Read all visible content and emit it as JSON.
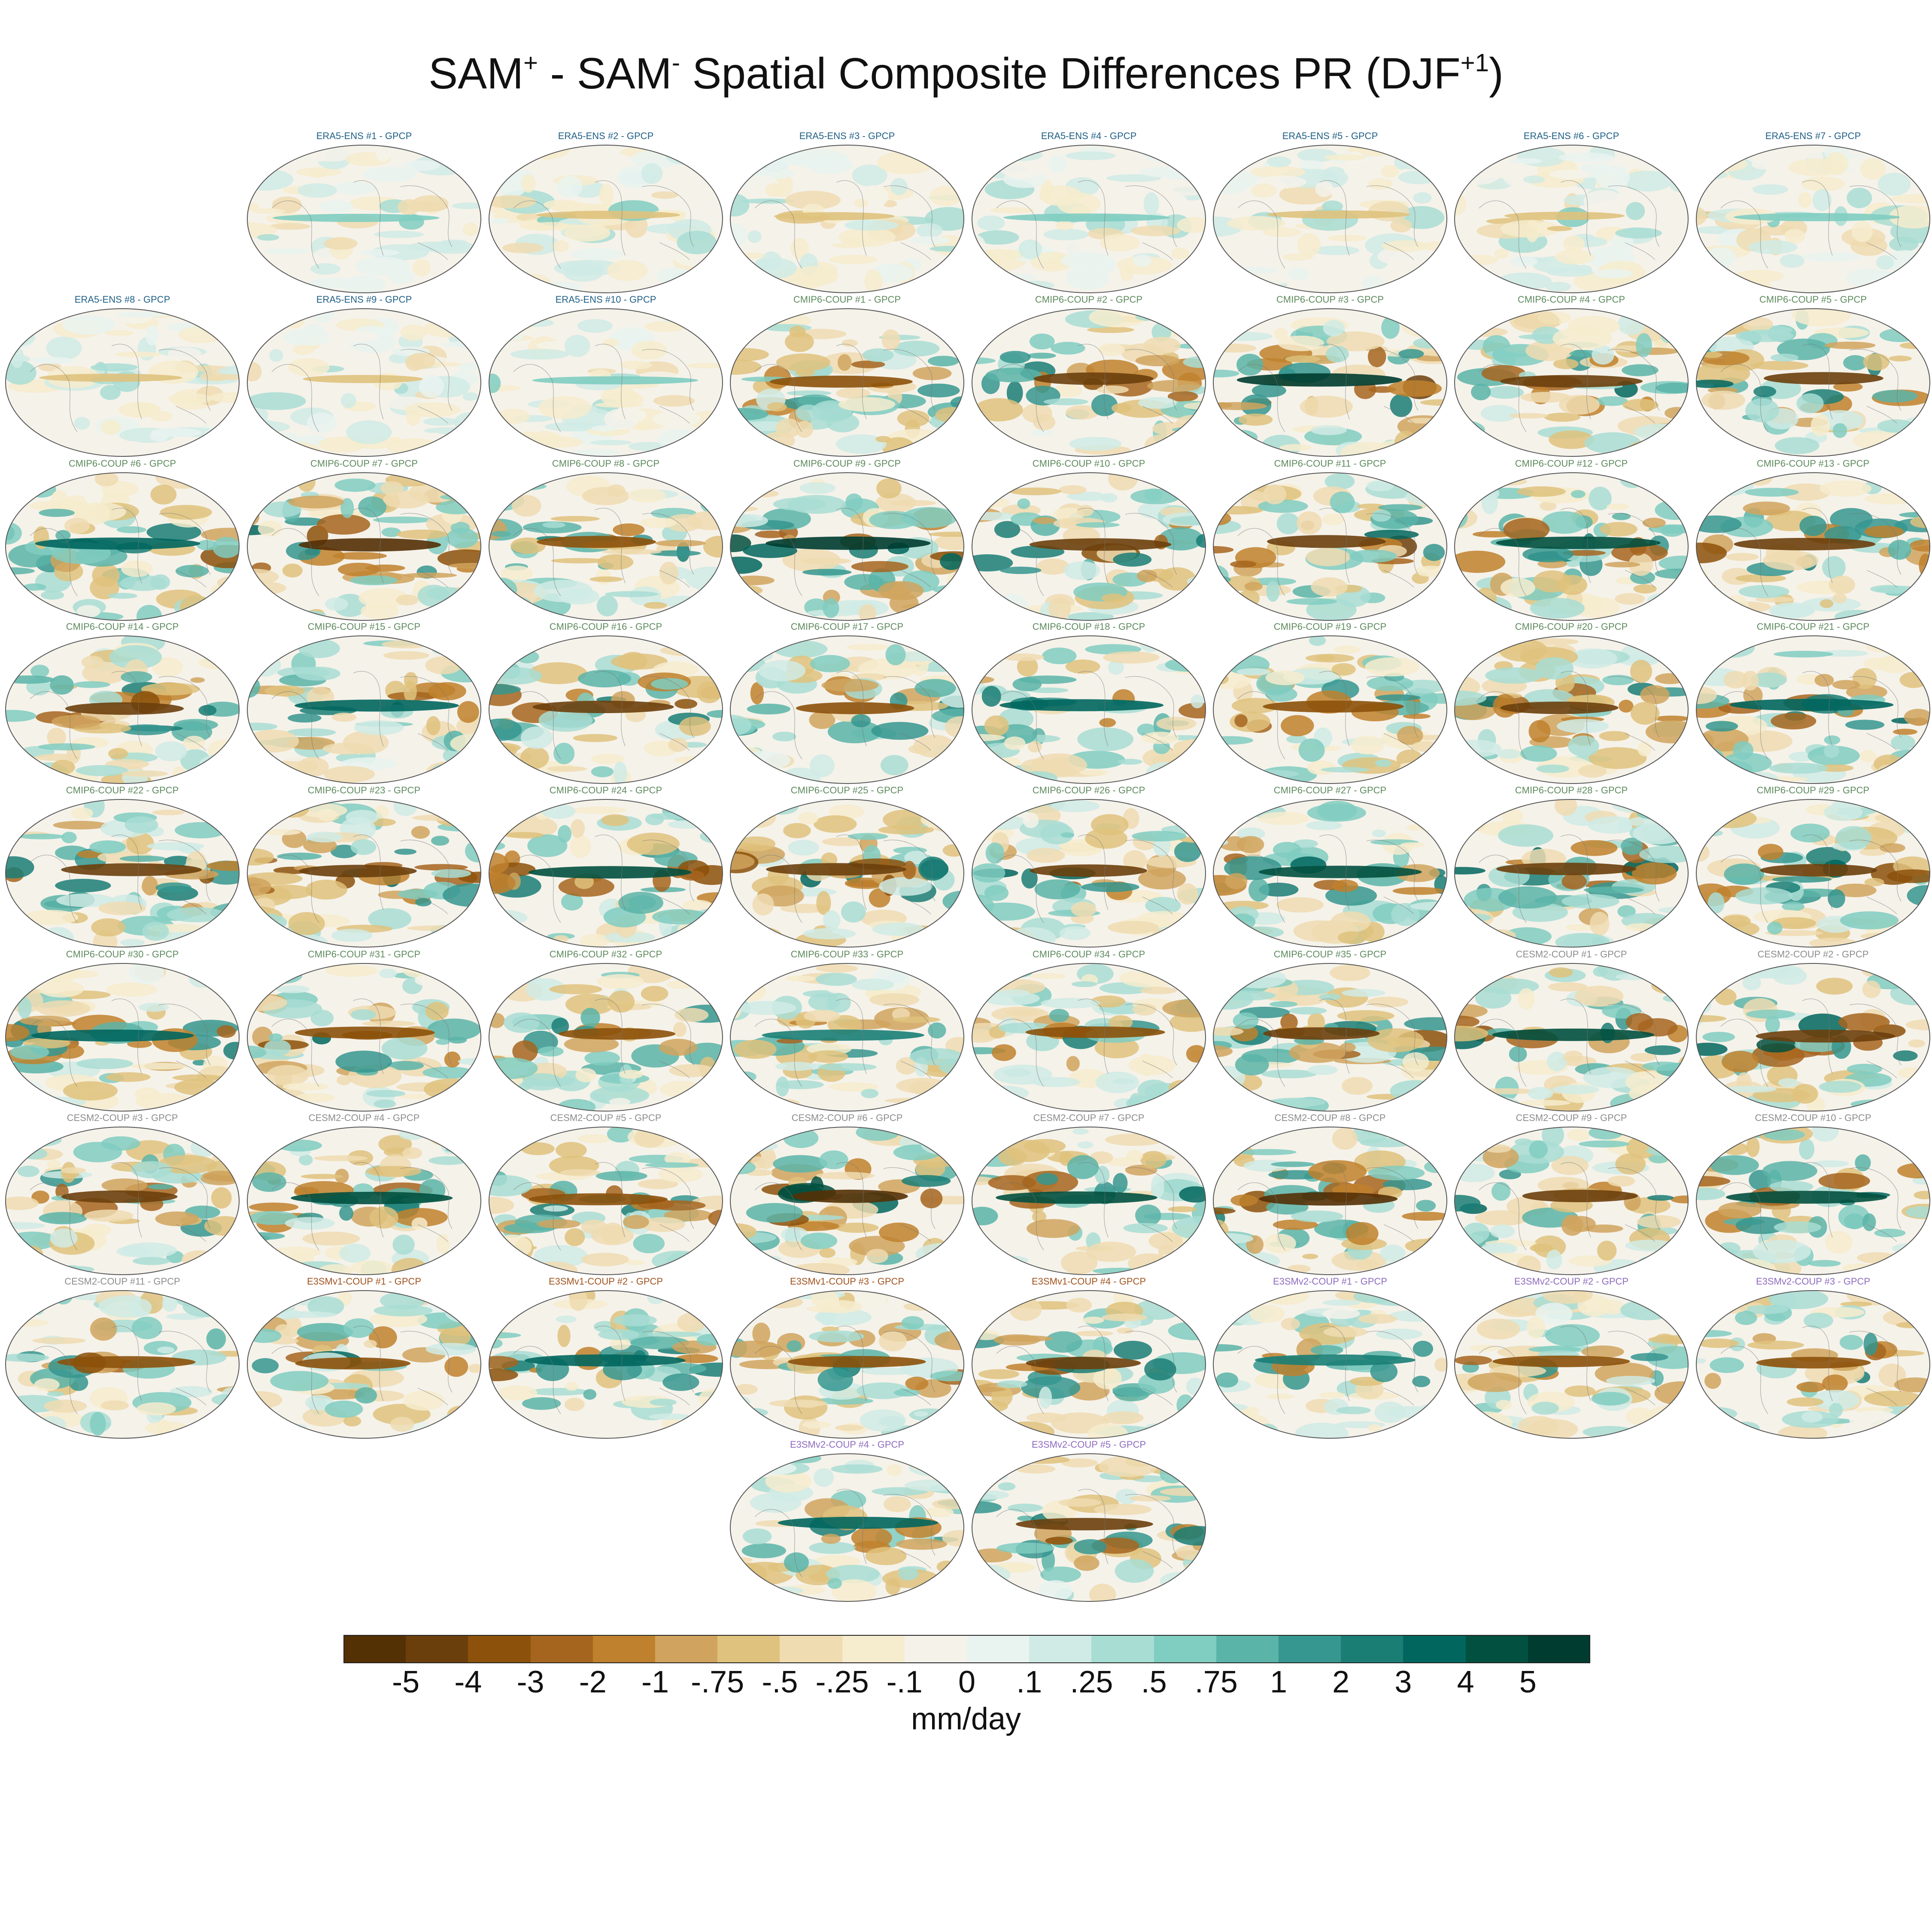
{
  "title": {
    "part1": "SAM",
    "sup1": "+",
    "part2": " - SAM",
    "sup2": "-",
    "part3": " Spatial Composite Differences PR (DJF",
    "sup3": "+1",
    "part4": ")"
  },
  "chart_data": {
    "type": "heatmap",
    "description_of_panels_shown": "map panels",
    "panel_suffix": " - GPCP",
    "groups": [
      {
        "name": "ERA5-ENS",
        "count": 10,
        "color": "#1f5f86"
      },
      {
        "name": "CMIP6-COUP",
        "count": 35,
        "color": "#5d8a5d"
      },
      {
        "name": "CESM2-COUP",
        "count": 11,
        "color": "#8c8c8c"
      },
      {
        "name": "E3SMv1-COUP",
        "count": 4,
        "color": "#a0521d"
      },
      {
        "name": "E3SMv2-COUP",
        "count": 5,
        "color": "#8e6bbf"
      }
    ],
    "panels": [
      {
        "label": "ERA5-ENS    #1 - GPCP",
        "group": 0,
        "intensity": 0.35
      },
      {
        "label": "ERA5-ENS    #2 - GPCP",
        "group": 0,
        "intensity": 0.35
      },
      {
        "label": "ERA5-ENS    #3 - GPCP",
        "group": 0,
        "intensity": 0.35
      },
      {
        "label": "ERA5-ENS    #4 - GPCP",
        "group": 0,
        "intensity": 0.35
      },
      {
        "label": "ERA5-ENS    #5 - GPCP",
        "group": 0,
        "intensity": 0.35
      },
      {
        "label": "ERA5-ENS    #6 - GPCP",
        "group": 0,
        "intensity": 0.35
      },
      {
        "label": "ERA5-ENS    #7 - GPCP",
        "group": 0,
        "intensity": 0.35
      },
      {
        "label": "ERA5-ENS    #8 - GPCP",
        "group": 0,
        "intensity": 0.35
      },
      {
        "label": "ERA5-ENS    #9 - GPCP",
        "group": 0,
        "intensity": 0.35
      },
      {
        "label": "ERA5-ENS    #10 - GPCP",
        "group": 0,
        "intensity": 0.35
      },
      {
        "label": "CMIP6-COUP  #1 - GPCP",
        "group": 1,
        "intensity": 0.8
      },
      {
        "label": "CMIP6-COUP  #2 - GPCP",
        "group": 1,
        "intensity": 0.85
      },
      {
        "label": "CMIP6-COUP  #3 - GPCP",
        "group": 1,
        "intensity": 0.95
      },
      {
        "label": "CMIP6-COUP  #4 - GPCP",
        "group": 1,
        "intensity": 0.85
      },
      {
        "label": "CMIP6-COUP  #5 - GPCP",
        "group": 1,
        "intensity": 0.85
      },
      {
        "label": "CMIP6-COUP  #6 - GPCP",
        "group": 1,
        "intensity": 0.8
      },
      {
        "label": "CMIP6-COUP  #7 - GPCP",
        "group": 1,
        "intensity": 0.95
      },
      {
        "label": "CMIP6-COUP  #8 - GPCP",
        "group": 1,
        "intensity": 0.8
      },
      {
        "label": "CMIP6-COUP  #9 - GPCP",
        "group": 1,
        "intensity": 0.95
      },
      {
        "label": "CMIP6-COUP  #10 - GPCP",
        "group": 1,
        "intensity": 0.85
      },
      {
        "label": "CMIP6-COUP  #11 - GPCP",
        "group": 1,
        "intensity": 0.9
      },
      {
        "label": "CMIP6-COUP  #12 - GPCP",
        "group": 1,
        "intensity": 0.85
      },
      {
        "label": "CMIP6-COUP  #13 - GPCP",
        "group": 1,
        "intensity": 0.85
      },
      {
        "label": "CMIP6-COUP  #14 - GPCP",
        "group": 1,
        "intensity": 0.85
      },
      {
        "label": "CMIP6-COUP  #15 - GPCP",
        "group": 1,
        "intensity": 0.8
      },
      {
        "label": "CMIP6-COUP  #16 - GPCP",
        "group": 1,
        "intensity": 0.85
      },
      {
        "label": "CMIP6-COUP  #17 - GPCP",
        "group": 1,
        "intensity": 0.8
      },
      {
        "label": "CMIP6-COUP  #18 - GPCP",
        "group": 1,
        "intensity": 0.8
      },
      {
        "label": "CMIP6-COUP  #19 - GPCP",
        "group": 1,
        "intensity": 0.8
      },
      {
        "label": "CMIP6-COUP  #20 - GPCP",
        "group": 1,
        "intensity": 0.85
      },
      {
        "label": "CMIP6-COUP  #21 - GPCP",
        "group": 1,
        "intensity": 0.8
      },
      {
        "label": "CMIP6-COUP  #22 - GPCP",
        "group": 1,
        "intensity": 0.9
      },
      {
        "label": "CMIP6-COUP  #23 - GPCP",
        "group": 1,
        "intensity": 0.85
      },
      {
        "label": "CMIP6-COUP  #24 - GPCP",
        "group": 1,
        "intensity": 0.85
      },
      {
        "label": "CMIP6-COUP  #25 - GPCP",
        "group": 1,
        "intensity": 0.85
      },
      {
        "label": "CMIP6-COUP  #26 - GPCP",
        "group": 1,
        "intensity": 0.85
      },
      {
        "label": "CMIP6-COUP  #27 - GPCP",
        "group": 1,
        "intensity": 0.85
      },
      {
        "label": "CMIP6-COUP  #28 - GPCP",
        "group": 1,
        "intensity": 0.85
      },
      {
        "label": "CMIP6-COUP  #29 - GPCP",
        "group": 1,
        "intensity": 0.85
      },
      {
        "label": "CMIP6-COUP  #30 - GPCP",
        "group": 1,
        "intensity": 0.8
      },
      {
        "label": "CMIP6-COUP  #31 - GPCP",
        "group": 1,
        "intensity": 0.8
      },
      {
        "label": "CMIP6-COUP  #32 - GPCP",
        "group": 1,
        "intensity": 0.75
      },
      {
        "label": "CMIP6-COUP  #33 - GPCP",
        "group": 1,
        "intensity": 0.7
      },
      {
        "label": "CMIP6-COUP  #34 - GPCP",
        "group": 1,
        "intensity": 0.75
      },
      {
        "label": "CMIP6-COUP  #35 - GPCP",
        "group": 1,
        "intensity": 0.85
      },
      {
        "label": "CESM2-COUP  #1 - GPCP",
        "group": 2,
        "intensity": 0.85
      },
      {
        "label": "CESM2-COUP  #2 - GPCP",
        "group": 2,
        "intensity": 0.9
      },
      {
        "label": "CESM2-COUP  #3 - GPCP",
        "group": 2,
        "intensity": 0.85
      },
      {
        "label": "CESM2-COUP  #4 - GPCP",
        "group": 2,
        "intensity": 0.85
      },
      {
        "label": "CESM2-COUP  #5 - GPCP",
        "group": 2,
        "intensity": 0.8
      },
      {
        "label": "CESM2-COUP  #6 - GPCP",
        "group": 2,
        "intensity": 0.95
      },
      {
        "label": "CESM2-COUP  #7 - GPCP",
        "group": 2,
        "intensity": 0.85
      },
      {
        "label": "CESM2-COUP  #8 - GPCP",
        "group": 2,
        "intensity": 0.95
      },
      {
        "label": "CESM2-COUP  #9 - GPCP",
        "group": 2,
        "intensity": 0.85
      },
      {
        "label": "CESM2-COUP  #10 - GPCP",
        "group": 2,
        "intensity": 0.9
      },
      {
        "label": "CESM2-COUP  #11 - GPCP",
        "group": 2,
        "intensity": 0.8
      },
      {
        "label": "E3SMv1-COUP #1 - GPCP",
        "group": 3,
        "intensity": 0.8
      },
      {
        "label": "E3SMv1-COUP #2 - GPCP",
        "group": 3,
        "intensity": 0.8
      },
      {
        "label": "E3SMv1-COUP #3 - GPCP",
        "group": 3,
        "intensity": 0.75
      },
      {
        "label": "E3SMv1-COUP #4 - GPCP",
        "group": 3,
        "intensity": 0.85
      },
      {
        "label": "E3SMv2-COUP #1 - GPCP",
        "group": 4,
        "intensity": 0.7
      },
      {
        "label": "E3SMv2-COUP #2 - GPCP",
        "group": 4,
        "intensity": 0.75
      },
      {
        "label": "E3SMv2-COUP #3 - GPCP",
        "group": 4,
        "intensity": 0.75
      },
      {
        "label": "E3SMv2-COUP #4 - GPCP",
        "group": 4,
        "intensity": 0.8
      },
      {
        "label": "E3SMv2-COUP #5 - GPCP",
        "group": 4,
        "intensity": 0.85
      }
    ],
    "colorbar": {
      "unit": "mm/day",
      "ticks": [
        "-5",
        "-4",
        "-3",
        "-2",
        "-1",
        "-.75",
        "-.5",
        "-.25",
        "-.1",
        "0",
        ".1",
        ".25",
        ".5",
        ".75",
        "1",
        "2",
        "3",
        "4",
        "5"
      ],
      "colors": [
        "#543005",
        "#6b3f0c",
        "#8c510a",
        "#a6651e",
        "#bf812d",
        "#d0a45e",
        "#dfc27d",
        "#efdcb1",
        "#f6ecce",
        "#f5f2ea",
        "#e9f3f0",
        "#d0ebe5",
        "#a8ddd3",
        "#80cdc1",
        "#5ab4a8",
        "#35978f",
        "#1a7e75",
        "#01665e",
        "#02503f",
        "#003c30"
      ]
    }
  }
}
